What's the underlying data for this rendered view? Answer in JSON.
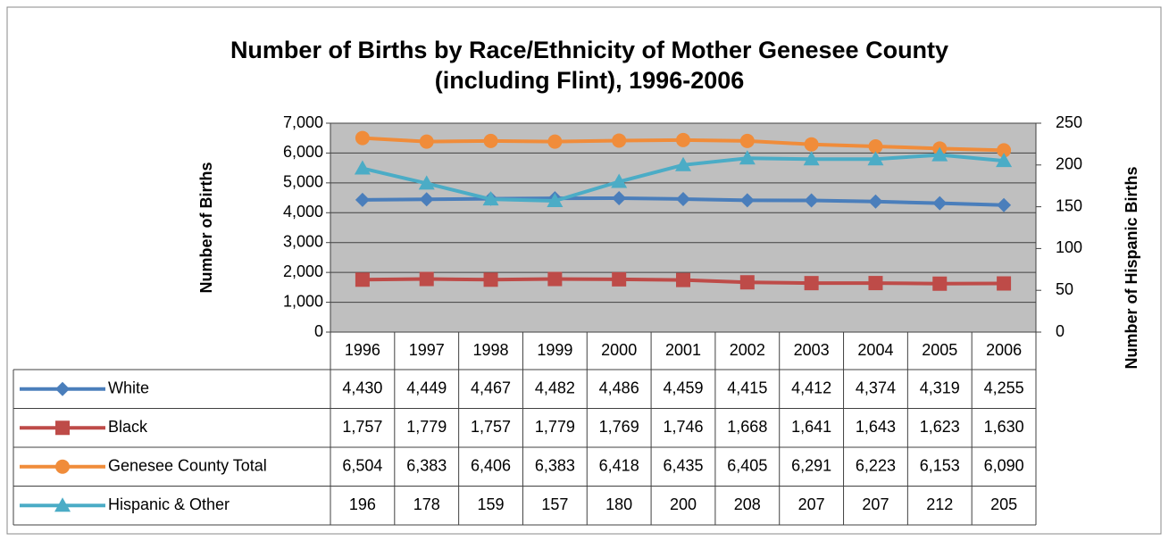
{
  "chart_data": {
    "type": "line",
    "title": [
      "Number of Births by Race/Ethnicity of Mother Genesee County",
      "(including Flint), 1996-2006"
    ],
    "ylabel": "Number of Births",
    "y2label": "Number of Hispanic Births",
    "categories": [
      "1996",
      "1997",
      "1998",
      "1999",
      "2000",
      "2001",
      "2002",
      "2003",
      "2004",
      "2005",
      "2006"
    ],
    "ylim": [
      0,
      7000
    ],
    "yticks": [
      0,
      {
        "value": 1000,
        "label": "1,000"
      },
      {
        "value": 2000,
        "label": "2,000"
      },
      {
        "value": 3000,
        "label": "3,000"
      },
      {
        "value": 4000,
        "label": "4,000"
      },
      {
        "value": 5000,
        "label": "5,000"
      },
      {
        "value": 6000,
        "label": "6,000"
      },
      {
        "value": 7000,
        "label": "7,000"
      }
    ],
    "y2lim": [
      0,
      250
    ],
    "y2ticks": [
      0,
      50,
      100,
      150,
      200,
      250
    ],
    "grid": true,
    "series": [
      {
        "name": "White",
        "color": "#4a7ebb",
        "marker": "diamond",
        "values": [
          4430,
          4449,
          4467,
          4482,
          4486,
          4459,
          4415,
          4412,
          4374,
          4319,
          4255
        ],
        "value_labels": [
          "4,430",
          "4,449",
          "4,467",
          "4,482",
          "4,486",
          "4,459",
          "4,415",
          "4,412",
          "4,374",
          "4,319",
          "4,255"
        ]
      },
      {
        "name": "Black",
        "color": "#be4b48",
        "marker": "square",
        "values": [
          1757,
          1779,
          1757,
          1779,
          1769,
          1746,
          1668,
          1641,
          1643,
          1623,
          1630
        ],
        "value_labels": [
          "1,757",
          "1,779",
          "1,757",
          "1,779",
          "1,769",
          "1,746",
          "1,668",
          "1,641",
          "1,643",
          "1,623",
          "1,630"
        ]
      },
      {
        "name": "Genesee County Total",
        "color": "#f08c3a",
        "marker": "circle",
        "values": [
          6504,
          6383,
          6406,
          6383,
          6418,
          6435,
          6405,
          6291,
          6223,
          6153,
          6090
        ],
        "value_labels": [
          "6,504",
          "6,383",
          "6,406",
          "6,383",
          "6,418",
          "6,435",
          "6,405",
          "6,291",
          "6,223",
          "6,153",
          "6,090"
        ]
      },
      {
        "name": "Hispanic & Other",
        "color": "#4bacc6",
        "marker": "triangle",
        "axis": "y2",
        "values": [
          196,
          178,
          159,
          157,
          180,
          200,
          208,
          207,
          207,
          212,
          205
        ]
      }
    ]
  }
}
